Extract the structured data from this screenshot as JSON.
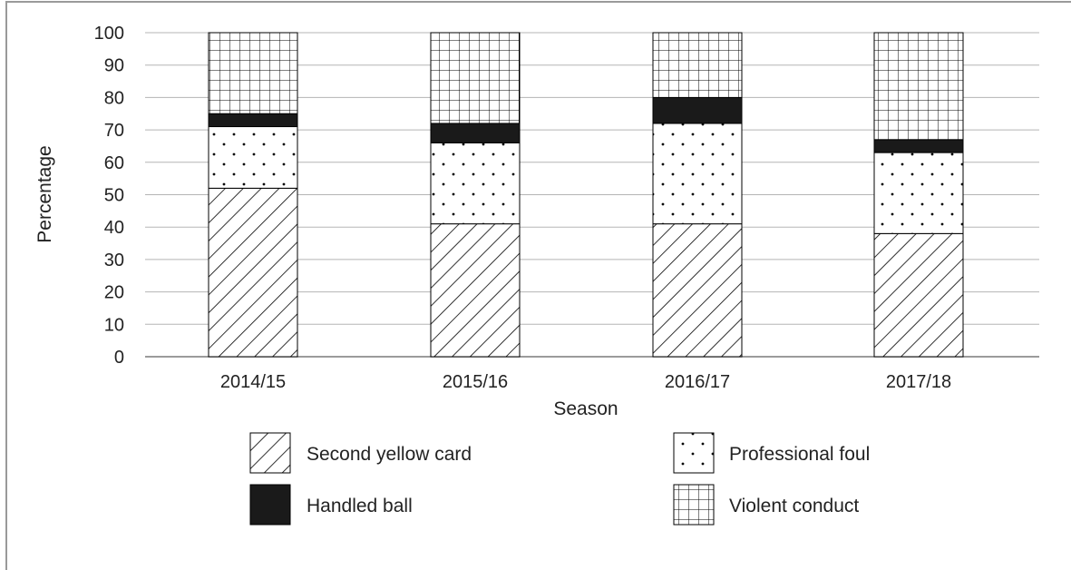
{
  "chart_data": {
    "type": "bar",
    "stacked": true,
    "categories": [
      "2014/15",
      "2015/16",
      "2016/17",
      "2017/18"
    ],
    "series": [
      {
        "name": "Second yellow card",
        "values": [
          52,
          41,
          41,
          38
        ],
        "pattern": "diagonal-hatch",
        "color": "#000000"
      },
      {
        "name": "Professional foul",
        "values": [
          19,
          25,
          31,
          25
        ],
        "pattern": "dots",
        "color": "#000000"
      },
      {
        "name": "Handled ball",
        "values": [
          4,
          6,
          8,
          4
        ],
        "pattern": "solid",
        "color": "#1a1a1a"
      },
      {
        "name": "Violent conduct",
        "values": [
          25,
          28,
          20,
          33
        ],
        "pattern": "grid",
        "color": "#000000"
      }
    ],
    "title": "",
    "xlabel": "Season",
    "ylabel": "Percentage",
    "ylim": [
      0,
      100
    ],
    "yticks": [
      "0",
      "10",
      "20",
      "30",
      "40",
      "50",
      "60",
      "70",
      "80",
      "90",
      "100"
    ],
    "grid": true,
    "legend_position": "bottom",
    "legend": {
      "items": [
        {
          "label": "Second yellow card",
          "pattern": "diagonal-hatch"
        },
        {
          "label": "Professional foul",
          "pattern": "dots"
        },
        {
          "label": "Handled ball",
          "pattern": "solid"
        },
        {
          "label": "Violent conduct",
          "pattern": "grid"
        }
      ]
    }
  }
}
